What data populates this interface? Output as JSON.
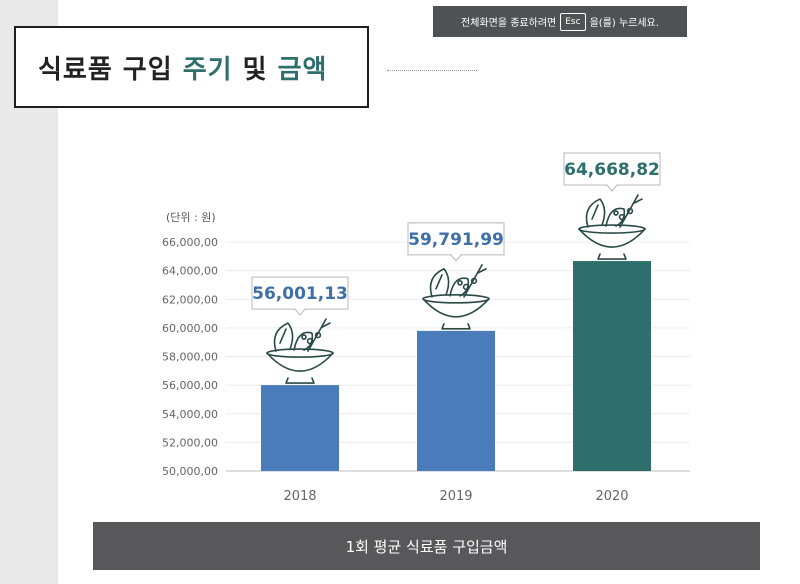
{
  "notice": {
    "before": "전체화면을 종료하려면",
    "key": "Esc",
    "after": "을(를) 누르세요."
  },
  "title": {
    "part1": "식료품 구입",
    "part2": "주기",
    "part3": "및",
    "part4": "금액"
  },
  "footer": "1회 평균 식료품 구입금액",
  "colors": {
    "bar_blue": "#4a7bbb",
    "bar_teal": "#2e6f6b",
    "label_blue": "#3f6fa8",
    "label_teal": "#2e6f6b",
    "icon": "#2a4a47"
  },
  "chart_data": {
    "type": "bar",
    "unit_label": "(단위 : 원)",
    "categories": [
      "2018",
      "2019",
      "2020"
    ],
    "values": [
      56001.13,
      59791.99,
      64668.82
    ],
    "value_labels": [
      "56,001,13",
      "59,791,99",
      "64,668,82"
    ],
    "ylim": [
      50000,
      66000
    ],
    "yticks": [
      50000,
      52000,
      54000,
      56000,
      58000,
      60000,
      62000,
      64000,
      66000
    ],
    "ytick_labels": [
      "50,000,00",
      "52,000,00",
      "54,000,00",
      "56,000,00",
      "58,000,00",
      "60,000,00",
      "62,000,00",
      "64,000,00",
      "66,000,00"
    ],
    "grid": true,
    "icons": [
      "salad-bowl-icon",
      "salad-bowl-icon",
      "salad-bowl-icon"
    ]
  }
}
